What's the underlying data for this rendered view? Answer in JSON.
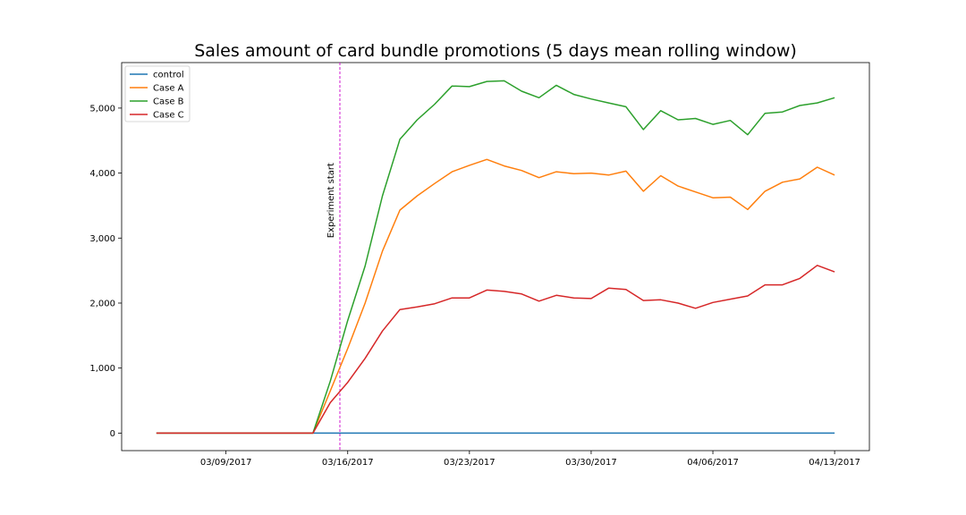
{
  "chart_data": {
    "type": "line",
    "title": "Sales amount of card bundle promotions (5 days mean rolling window)",
    "xlabel": "",
    "ylabel": "",
    "x_tick_labels": [
      "03/09/2017",
      "03/16/2017",
      "03/23/2017",
      "03/30/2017",
      "04/06/2017",
      "04/13/2017"
    ],
    "y_ticks": [
      0,
      1000,
      2000,
      3000,
      4000,
      5000
    ],
    "y_tick_labels": [
      "0",
      "1,000",
      "2,000",
      "3,000",
      "4,000",
      "5,000"
    ],
    "ylim": [
      -270,
      5700
    ],
    "xlim": [
      "2017-03-03",
      "2017-04-15"
    ],
    "legend_position": "top-left",
    "grid": false,
    "x_dates": [
      "2017-03-05",
      "2017-03-06",
      "2017-03-07",
      "2017-03-08",
      "2017-03-09",
      "2017-03-10",
      "2017-03-11",
      "2017-03-12",
      "2017-03-13",
      "2017-03-14",
      "2017-03-15",
      "2017-03-16",
      "2017-03-17",
      "2017-03-18",
      "2017-03-19",
      "2017-03-20",
      "2017-03-21",
      "2017-03-22",
      "2017-03-23",
      "2017-03-24",
      "2017-03-25",
      "2017-03-26",
      "2017-03-27",
      "2017-03-28",
      "2017-03-29",
      "2017-03-30",
      "2017-03-31",
      "2017-04-01",
      "2017-04-02",
      "2017-04-03",
      "2017-04-04",
      "2017-04-05",
      "2017-04-06",
      "2017-04-07",
      "2017-04-08",
      "2017-04-09",
      "2017-04-10",
      "2017-04-11",
      "2017-04-12",
      "2017-04-13"
    ],
    "series": [
      {
        "name": "control",
        "color": "#1f77b4",
        "values": [
          0,
          0,
          0,
          0,
          0,
          0,
          0,
          0,
          0,
          0,
          0,
          0,
          0,
          0,
          0,
          0,
          0,
          0,
          0,
          0,
          0,
          0,
          0,
          0,
          0,
          0,
          0,
          0,
          0,
          0,
          0,
          0,
          0,
          0,
          0,
          0,
          0,
          0,
          0,
          0
        ]
      },
      {
        "name": "Case A",
        "color": "#ff7f0e",
        "values": [
          0,
          0,
          0,
          0,
          0,
          0,
          0,
          0,
          0,
          0,
          650,
          1300,
          2000,
          2800,
          3430,
          3650,
          3840,
          4020,
          4120,
          4210,
          4110,
          4040,
          3930,
          4020,
          3990,
          4000,
          3970,
          4030,
          3720,
          3960,
          3800,
          3710,
          3620,
          3630,
          3440,
          3720,
          3860,
          3910,
          4090,
          3970
        ]
      },
      {
        "name": "Case B",
        "color": "#2ca02c",
        "values": [
          0,
          0,
          0,
          0,
          0,
          0,
          0,
          0,
          0,
          0,
          800,
          1730,
          2570,
          3650,
          4520,
          4820,
          5060,
          5340,
          5330,
          5410,
          5420,
          5260,
          5160,
          5350,
          5210,
          5140,
          5080,
          5020,
          4670,
          4960,
          4820,
          4840,
          4750,
          4810,
          4590,
          4920,
          4940,
          5040,
          5080,
          5160
        ]
      },
      {
        "name": "Case C",
        "color": "#d62728",
        "values": [
          0,
          0,
          0,
          0,
          0,
          0,
          0,
          0,
          0,
          0,
          470,
          780,
          1150,
          1570,
          1900,
          1940,
          1990,
          2080,
          2080,
          2200,
          2180,
          2140,
          2030,
          2120,
          2080,
          2070,
          2230,
          2210,
          2040,
          2050,
          2000,
          1920,
          2010,
          2060,
          2110,
          2280,
          2280,
          2380,
          2580,
          2480
        ]
      }
    ],
    "annotations": [
      {
        "type": "vline",
        "x": "2017-03-15",
        "color": "#cc00cc",
        "style": "dashed",
        "label": "Experiment start"
      }
    ]
  }
}
